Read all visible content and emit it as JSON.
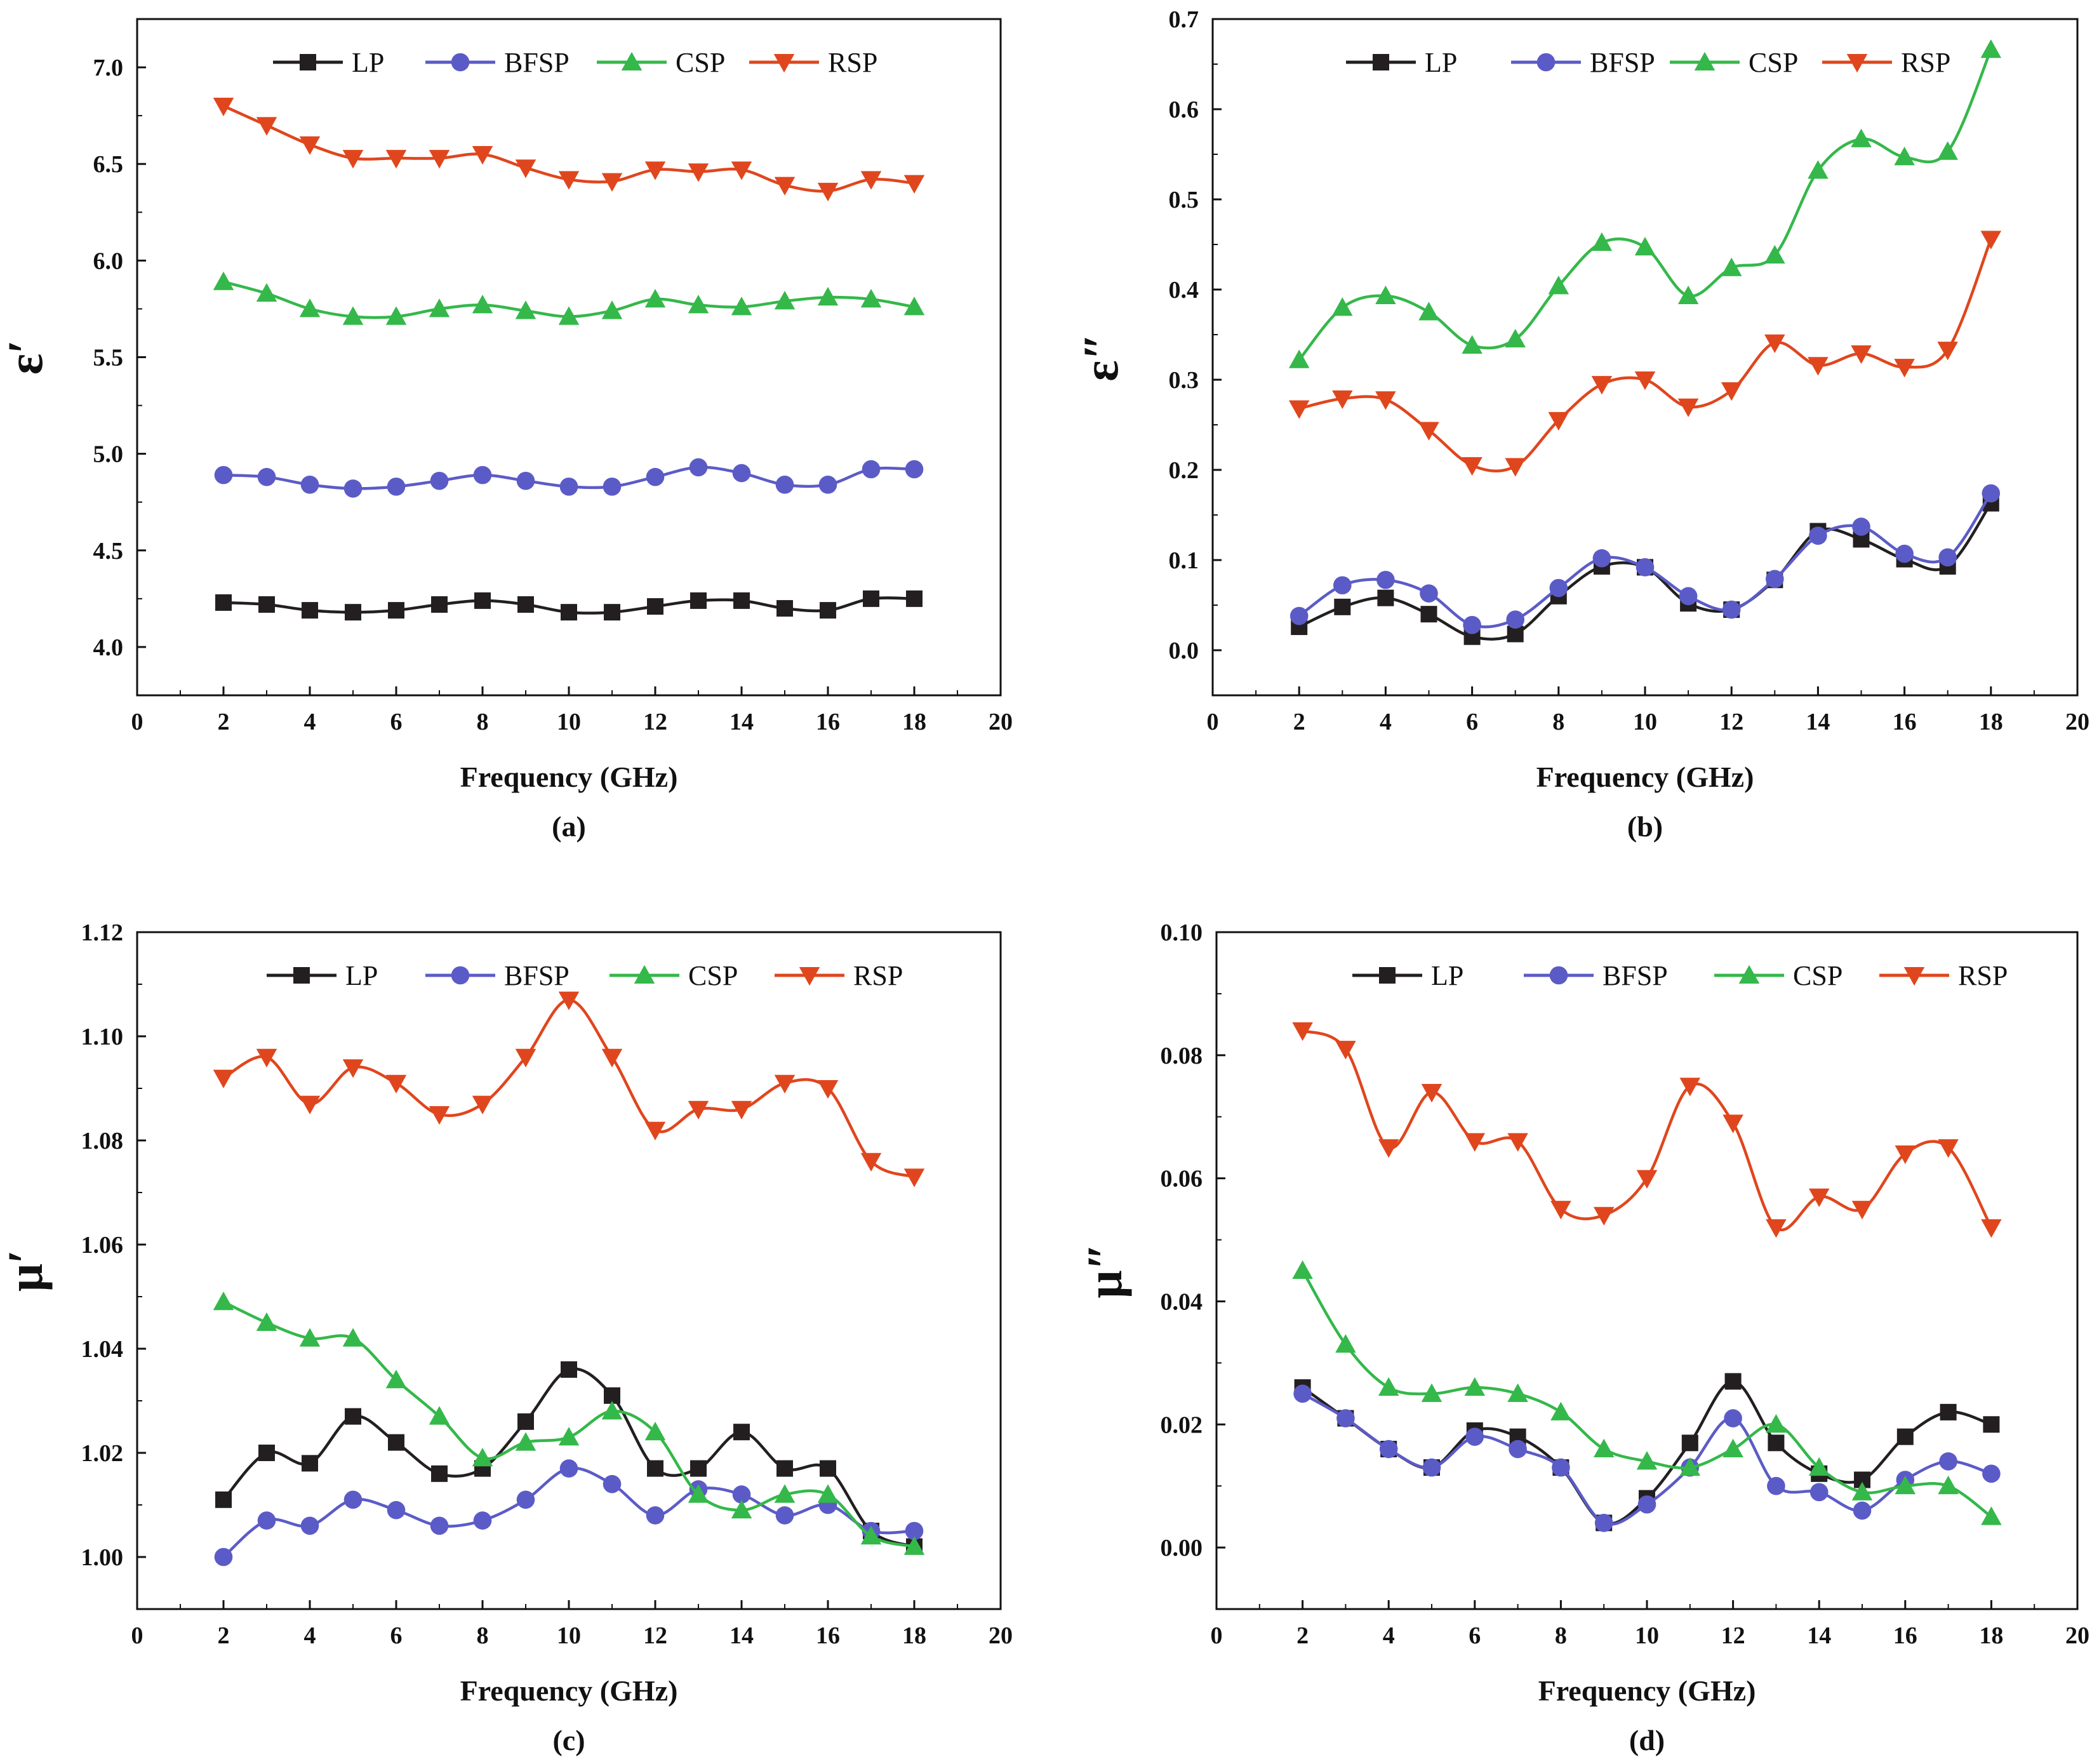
{
  "figure": {
    "colors": {
      "LP": "#231f20",
      "BFSP": "#5b5bc7",
      "CSP": "#34b84a",
      "RSP": "#e0461d"
    },
    "markers": {
      "LP": "square",
      "BFSP": "circle",
      "CSP": "triangle-up",
      "RSP": "triangle-down"
    }
  },
  "chart_data": [
    {
      "type": "line",
      "panel_label": "(a)",
      "title": "",
      "xlabel": "Frequency (GHz)",
      "ylabel": "ε",
      "ylabel_prime": "′",
      "xlim": [
        0,
        20
      ],
      "ylim": [
        3.75,
        7.25
      ],
      "xticks": [
        0,
        2,
        4,
        6,
        8,
        10,
        12,
        14,
        16,
        18,
        20
      ],
      "yticks": [
        4.0,
        4.5,
        5.0,
        5.5,
        6.0,
        6.5,
        7.0
      ],
      "ytick_decimals": 1,
      "legend_position": "top",
      "x": [
        2,
        3,
        4,
        5,
        6,
        7,
        8,
        9,
        10,
        11,
        12,
        13,
        14,
        15,
        16,
        17,
        18
      ],
      "series": [
        {
          "name": "LP",
          "values": [
            4.23,
            4.22,
            4.19,
            4.18,
            4.19,
            4.22,
            4.24,
            4.22,
            4.18,
            4.18,
            4.21,
            4.24,
            4.24,
            4.2,
            4.19,
            4.25,
            4.25
          ]
        },
        {
          "name": "BFSP",
          "values": [
            4.89,
            4.88,
            4.84,
            4.82,
            4.83,
            4.86,
            4.89,
            4.86,
            4.83,
            4.83,
            4.88,
            4.93,
            4.9,
            4.84,
            4.84,
            4.92,
            4.92
          ]
        },
        {
          "name": "CSP",
          "values": [
            5.89,
            5.83,
            5.75,
            5.71,
            5.71,
            5.75,
            5.77,
            5.74,
            5.71,
            5.74,
            5.8,
            5.77,
            5.76,
            5.79,
            5.81,
            5.8,
            5.76
          ]
        },
        {
          "name": "RSP",
          "values": [
            6.8,
            6.7,
            6.6,
            6.53,
            6.53,
            6.53,
            6.55,
            6.48,
            6.42,
            6.41,
            6.47,
            6.46,
            6.47,
            6.39,
            6.36,
            6.42,
            6.4
          ]
        }
      ]
    },
    {
      "type": "line",
      "panel_label": "(b)",
      "title": "",
      "xlabel": "Frequency (GHz)",
      "ylabel": "ε",
      "ylabel_prime": "″",
      "xlim": [
        0,
        20
      ],
      "ylim": [
        -0.05,
        0.7
      ],
      "xticks": [
        0,
        2,
        4,
        6,
        8,
        10,
        12,
        14,
        16,
        18,
        20
      ],
      "yticks": [
        0.0,
        0.1,
        0.2,
        0.3,
        0.4,
        0.5,
        0.6,
        0.7
      ],
      "ytick_decimals": 1,
      "legend_position": "top",
      "x": [
        2,
        3,
        4,
        5,
        6,
        7,
        8,
        9,
        10,
        11,
        12,
        13,
        14,
        15,
        16,
        17,
        18
      ],
      "series": [
        {
          "name": "LP",
          "values": [
            0.026,
            0.048,
            0.058,
            0.04,
            0.015,
            0.018,
            0.06,
            0.093,
            0.092,
            0.052,
            0.045,
            0.078,
            0.132,
            0.123,
            0.101,
            0.093,
            0.163
          ]
        },
        {
          "name": "BFSP",
          "values": [
            0.038,
            0.072,
            0.078,
            0.063,
            0.028,
            0.034,
            0.069,
            0.102,
            0.092,
            0.06,
            0.045,
            0.079,
            0.127,
            0.137,
            0.107,
            0.103,
            0.174
          ]
        },
        {
          "name": "CSP",
          "values": [
            0.322,
            0.38,
            0.393,
            0.375,
            0.338,
            0.345,
            0.404,
            0.452,
            0.447,
            0.393,
            0.424,
            0.438,
            0.532,
            0.567,
            0.547,
            0.553,
            0.666
          ]
        },
        {
          "name": "RSP",
          "values": [
            0.268,
            0.279,
            0.278,
            0.244,
            0.205,
            0.204,
            0.255,
            0.295,
            0.3,
            0.27,
            0.288,
            0.341,
            0.316,
            0.329,
            0.314,
            0.333,
            0.456
          ]
        }
      ]
    },
    {
      "type": "line",
      "panel_label": "(c)",
      "title": "",
      "xlabel": "Frequency (GHz)",
      "ylabel": "μ",
      "ylabel_prime": "′",
      "xlim": [
        0,
        20
      ],
      "ylim": [
        0.99,
        1.12
      ],
      "xticks": [
        0,
        2,
        4,
        6,
        8,
        10,
        12,
        14,
        16,
        18,
        20
      ],
      "yticks": [
        1.0,
        1.02,
        1.04,
        1.06,
        1.08,
        1.1,
        1.12
      ],
      "ytick_decimals": 2,
      "legend_position": "top",
      "x": [
        2,
        3,
        4,
        5,
        6,
        7,
        8,
        9,
        10,
        11,
        12,
        13,
        14,
        15,
        16,
        17,
        18
      ],
      "series": [
        {
          "name": "LP",
          "values": [
            1.011,
            1.02,
            1.018,
            1.027,
            1.022,
            1.016,
            1.017,
            1.026,
            1.036,
            1.031,
            1.017,
            1.017,
            1.024,
            1.017,
            1.017,
            1.005,
            1.002
          ]
        },
        {
          "name": "BFSP",
          "values": [
            1.0,
            1.007,
            1.006,
            1.011,
            1.009,
            1.006,
            1.007,
            1.011,
            1.017,
            1.014,
            1.008,
            1.013,
            1.012,
            1.008,
            1.01,
            1.005,
            1.005
          ]
        },
        {
          "name": "CSP",
          "values": [
            1.049,
            1.045,
            1.042,
            1.042,
            1.034,
            1.027,
            1.019,
            1.022,
            1.023,
            1.028,
            1.024,
            1.012,
            1.009,
            1.012,
            1.012,
            1.004,
            1.002
          ]
        },
        {
          "name": "RSP",
          "values": [
            1.092,
            1.096,
            1.087,
            1.094,
            1.091,
            1.085,
            1.087,
            1.096,
            1.107,
            1.096,
            1.082,
            1.086,
            1.086,
            1.091,
            1.09,
            1.076,
            1.073
          ]
        }
      ]
    },
    {
      "type": "line",
      "panel_label": "(d)",
      "title": "",
      "xlabel": "Frequency (GHz)",
      "ylabel": "μ",
      "ylabel_prime": "″",
      "xlim": [
        0,
        20
      ],
      "ylim": [
        -0.01,
        0.1
      ],
      "xticks": [
        0,
        2,
        4,
        6,
        8,
        10,
        12,
        14,
        16,
        18,
        20
      ],
      "yticks": [
        0.0,
        0.02,
        0.04,
        0.06,
        0.08,
        0.1
      ],
      "ytick_decimals": 2,
      "legend_position": "top",
      "x": [
        2,
        3,
        4,
        5,
        6,
        7,
        8,
        9,
        10,
        11,
        12,
        13,
        14,
        15,
        16,
        17,
        18
      ],
      "series": [
        {
          "name": "LP",
          "values": [
            0.026,
            0.021,
            0.016,
            0.013,
            0.019,
            0.018,
            0.013,
            0.004,
            0.008,
            0.017,
            0.027,
            0.017,
            0.012,
            0.011,
            0.018,
            0.022,
            0.02
          ]
        },
        {
          "name": "BFSP",
          "values": [
            0.025,
            0.021,
            0.016,
            0.013,
            0.018,
            0.016,
            0.013,
            0.004,
            0.007,
            0.013,
            0.021,
            0.01,
            0.009,
            0.006,
            0.011,
            0.014,
            0.012
          ]
        },
        {
          "name": "CSP",
          "values": [
            0.045,
            0.033,
            0.026,
            0.025,
            0.026,
            0.025,
            0.022,
            0.016,
            0.014,
            0.013,
            0.016,
            0.02,
            0.013,
            0.009,
            0.01,
            0.01,
            0.005
          ]
        },
        {
          "name": "RSP",
          "values": [
            0.084,
            0.081,
            0.065,
            0.074,
            0.066,
            0.066,
            0.055,
            0.054,
            0.06,
            0.075,
            0.069,
            0.052,
            0.057,
            0.055,
            0.064,
            0.065,
            0.052
          ]
        }
      ]
    }
  ]
}
